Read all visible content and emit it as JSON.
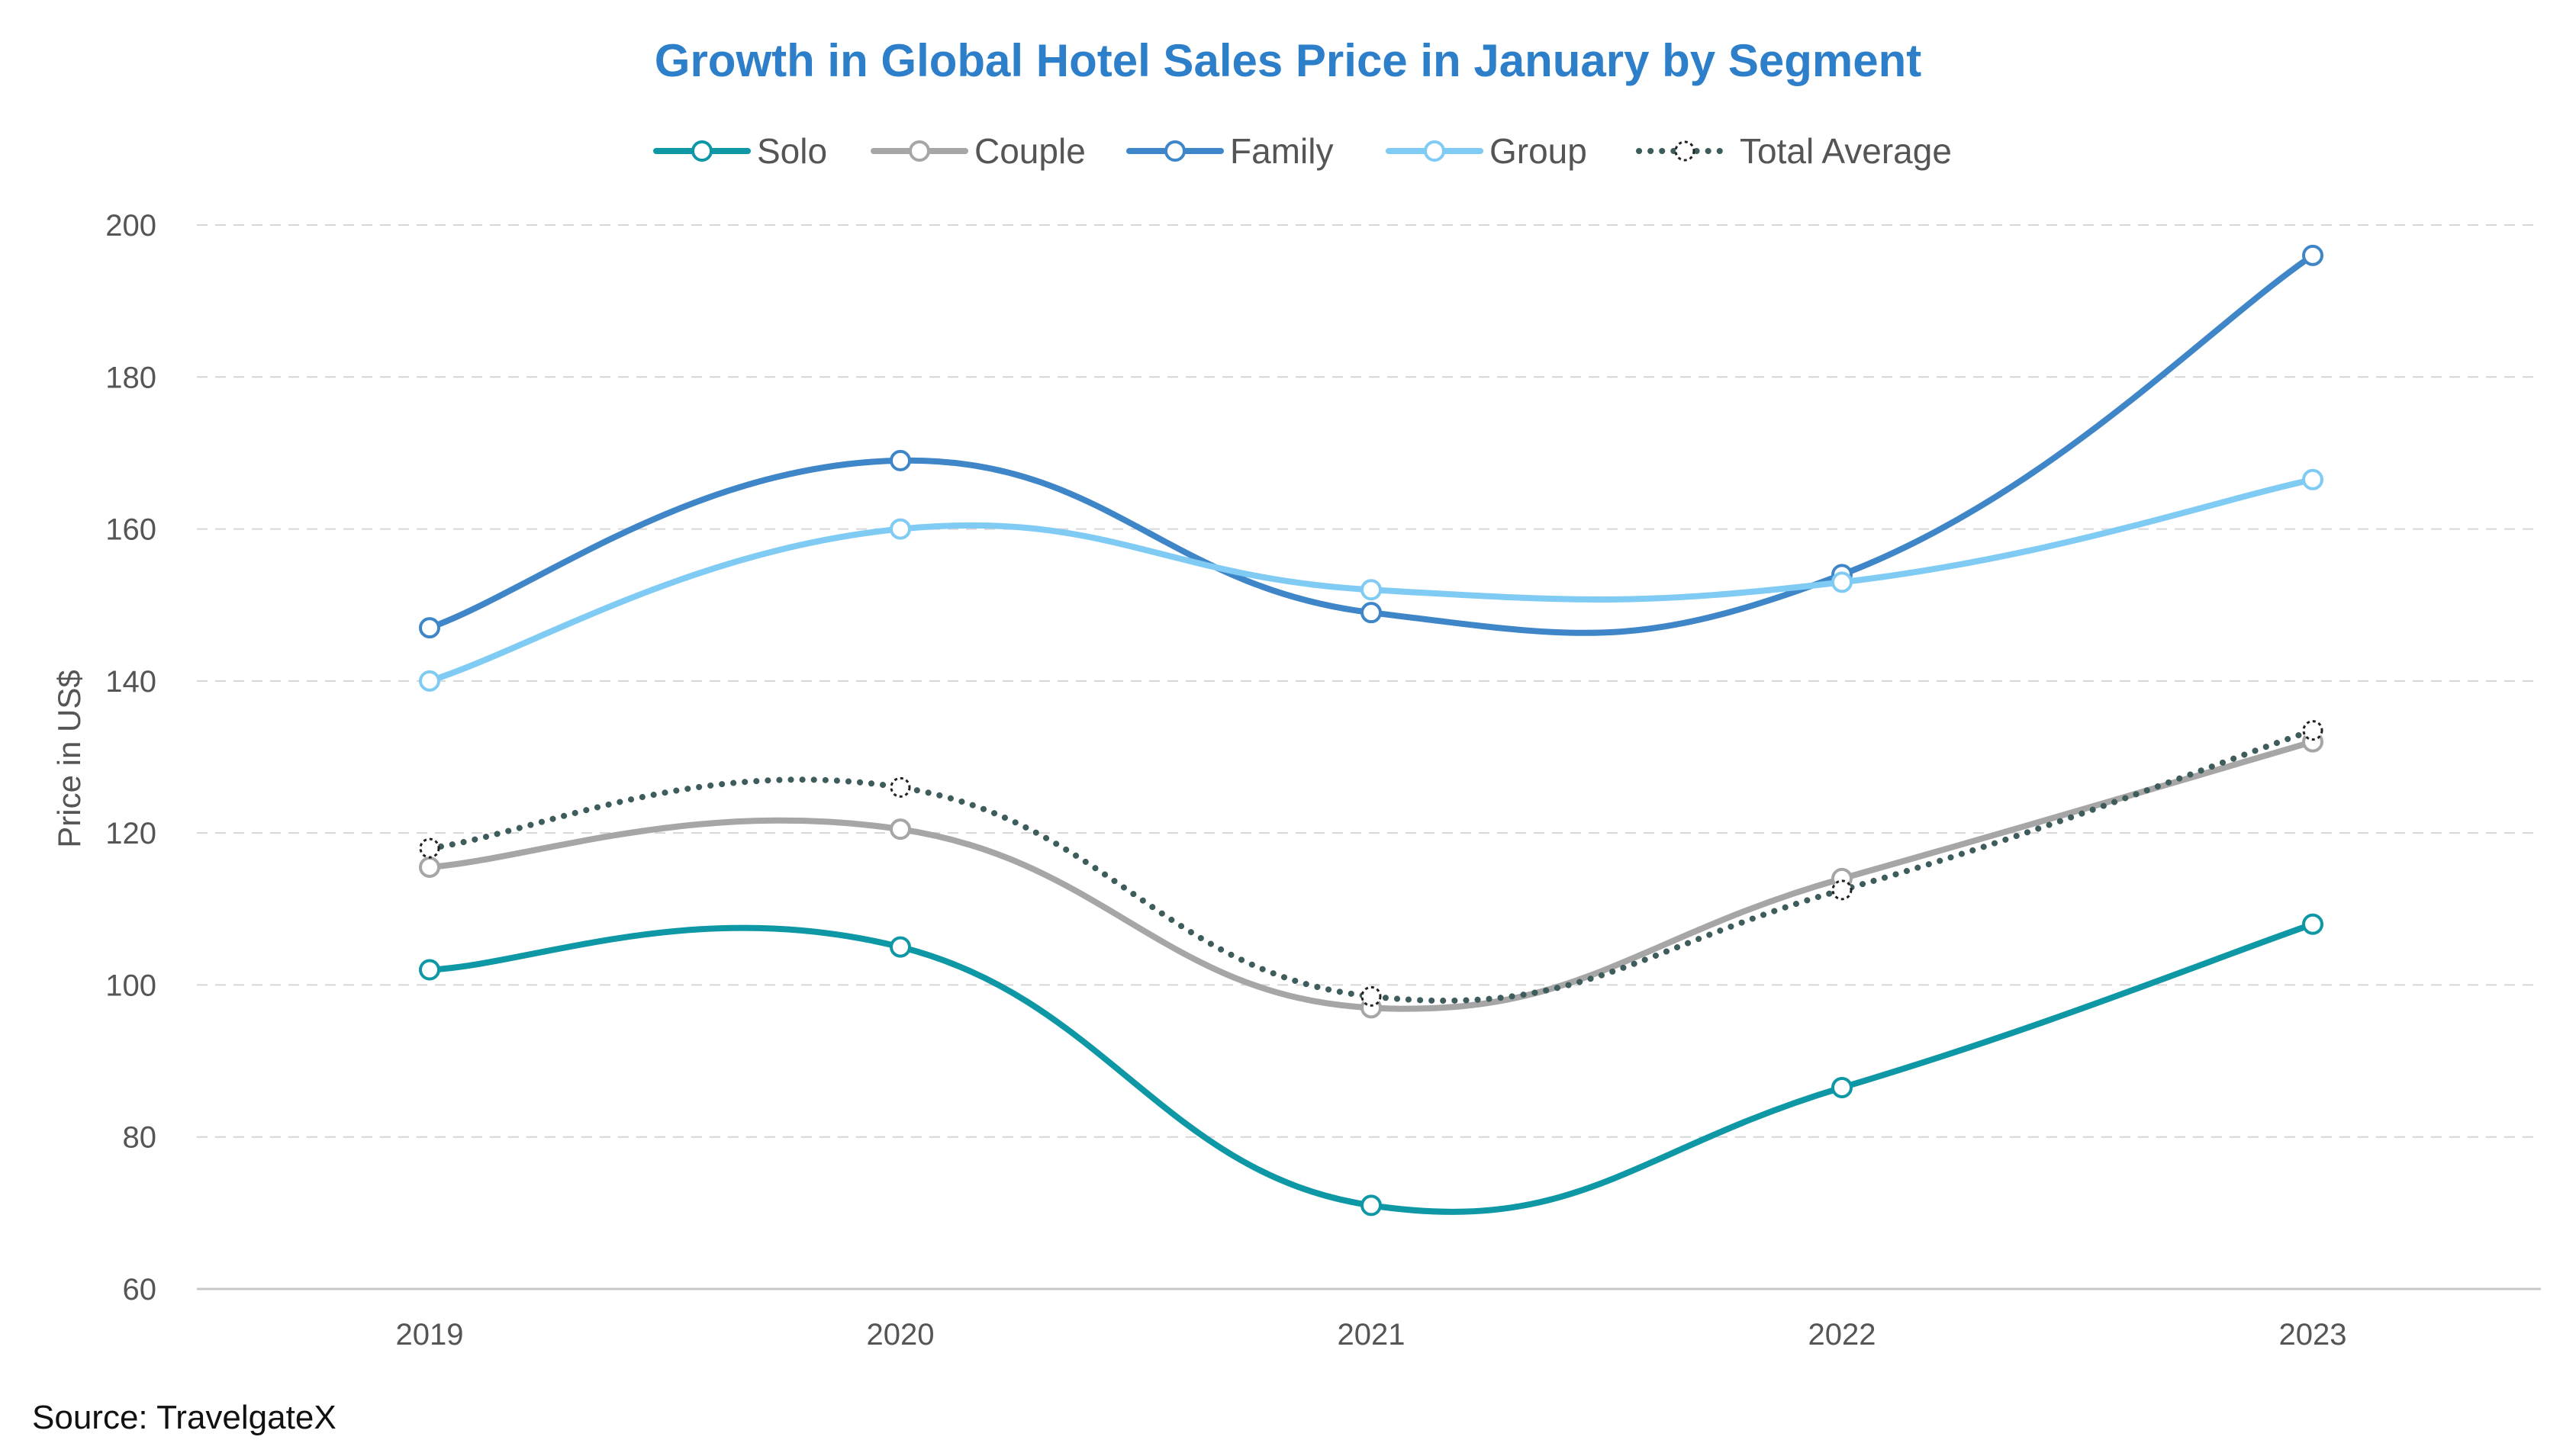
{
  "chart_data": {
    "type": "line",
    "title": "Growth in Global Hotel Sales Price in January by Segment",
    "title_color": "#2E7FC9",
    "xlabel": "",
    "ylabel": "Price in US$",
    "categories": [
      "2019",
      "2020",
      "2021",
      "2022",
      "2023"
    ],
    "ylim": [
      60,
      200
    ],
    "yticks": [
      60,
      80,
      100,
      120,
      140,
      160,
      180,
      200
    ],
    "grid": true,
    "legend_position": "top-center",
    "series": [
      {
        "name": "Solo",
        "values": [
          102,
          105,
          71,
          86.5,
          108
        ],
        "color": "#0E97A4",
        "style": "solid"
      },
      {
        "name": "Couple",
        "values": [
          115.5,
          120.5,
          97,
          114,
          132
        ],
        "color": "#A6A6A6",
        "style": "solid"
      },
      {
        "name": "Family",
        "values": [
          147,
          169,
          149,
          154,
          196
        ],
        "color": "#3F86C8",
        "style": "solid"
      },
      {
        "name": "Group",
        "values": [
          140,
          160,
          152,
          153,
          166.5
        ],
        "color": "#7FCBF4",
        "style": "solid"
      },
      {
        "name": "Total Average",
        "values": [
          118,
          126,
          98.5,
          112.5,
          133.5
        ],
        "color": "#3E5C5C",
        "style": "dotted"
      }
    ],
    "source": "Source: TravelgateX"
  }
}
